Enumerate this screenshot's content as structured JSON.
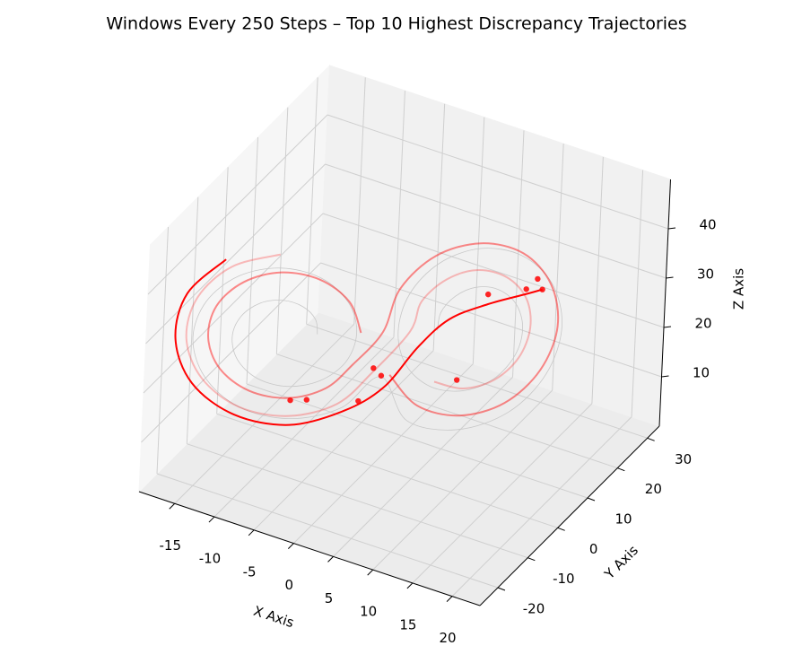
{
  "chart_data": {
    "type": "line3d",
    "title": "Windows Every 250 Steps – Top 10 Highest Discrepancy Trajectories",
    "xlabel": "X Axis",
    "ylabel": "Y Axis",
    "zlabel": "Z Axis",
    "xlim": [
      -19.5,
      23.5
    ],
    "ylim": [
      -26,
      34
    ],
    "zlim": [
      0,
      50
    ],
    "xticks": [
      -15,
      -10,
      -5,
      0,
      5,
      10,
      15,
      20
    ],
    "yticks": [
      -20,
      -10,
      0,
      10,
      20,
      30
    ],
    "zticks": [
      10,
      20,
      30,
      40
    ],
    "grid": true,
    "series": [
      {
        "color": "#c8c8c8",
        "alpha": 1,
        "width": 0.8,
        "x": [
          -5.5,
          -5.6,
          -6.7,
          -8.5,
          -10.6,
          -12.4,
          -13.3,
          -12.9,
          -11.2,
          -8.5,
          -5.5,
          -3.0,
          -1.9,
          -2.5,
          -4.9,
          -8.5,
          -12.4,
          -15.5,
          -16.9,
          -16.0,
          -13.0,
          -8.5,
          -3.7,
          0.1,
          3.7,
          8.5,
          13.0,
          16.0,
          16.9,
          15.5,
          12.4,
          8.5,
          4.9,
          2.5,
          1.9,
          3.0,
          5.5,
          8.5,
          11.2,
          12.9,
          13.3,
          12.4,
          10.6,
          8.5,
          6.7,
          5.6,
          5.5
        ],
        "y": [
          -5.5,
          -6.1,
          -7.6,
          -9.7,
          -11.7,
          -13.1,
          -13.3,
          -12.2,
          -9.8,
          -6.8,
          -3.9,
          -2.1,
          -1.9,
          -3.6,
          -6.8,
          -10.8,
          -14.4,
          -16.7,
          -16.9,
          -14.7,
          -10.7,
          -5.7,
          -1.2,
          1.6,
          1.2,
          5.7,
          10.7,
          14.7,
          16.9,
          16.7,
          14.4,
          10.8,
          6.8,
          3.6,
          1.9,
          2.1,
          3.9,
          6.8,
          9.8,
          12.2,
          13.3,
          13.1,
          11.7,
          9.7,
          7.6,
          6.1,
          5.5
        ],
        "z": [
          27,
          30.3,
          33.2,
          34.8,
          34.3,
          31.5,
          27,
          21.9,
          17.6,
          15.6,
          16.6,
          20.7,
          27,
          33.9,
          39.5,
          42,
          40.5,
          35.1,
          27,
          18.3,
          11.4,
          8.4,
          10.4,
          17.1,
          10.4,
          8.4,
          11.4,
          18.3,
          27,
          35.1,
          40.5,
          42,
          39.5,
          33.9,
          27,
          20.7,
          16.6,
          15.6,
          17.6,
          21.9,
          27,
          31.5,
          34.3,
          34.8,
          33.2,
          30.3,
          27
        ]
      },
      {
        "color": "#ff0000",
        "alpha": 0.25,
        "width": 2,
        "x": [
          -8.5,
          -13,
          -16.3,
          -17.5,
          -16.3,
          -13,
          -8.5,
          -4,
          -0.7,
          3,
          3.7,
          5.8,
          8.5,
          11.3,
          13.3,
          14,
          13.3,
          11.3,
          8.5,
          5.8
        ],
        "y": [
          -11.2,
          -15.3,
          -17.6,
          -17.5,
          -14.9,
          -10.7,
          -5.8,
          -1.7,
          0.6,
          3,
          4.6,
          7.2,
          10.2,
          12.7,
          14.1,
          14,
          12.4,
          9.8,
          6.9,
          4.3
        ],
        "z": [
          45,
          42.6,
          36,
          27,
          18,
          11.4,
          9,
          11.4,
          18,
          27,
          32.5,
          36.5,
          38,
          36.5,
          32.5,
          27,
          21.5,
          17.5,
          16,
          17.5
        ]
      },
      {
        "color": "#ff0000",
        "alpha": 0.45,
        "width": 2,
        "x": [
          -1.5,
          -2.4,
          -5,
          -8.5,
          -12,
          -14.6,
          -15.5,
          -14.6,
          -12,
          -8.5,
          -5,
          -2.4,
          0.5,
          1.6,
          4.5,
          8.5,
          12.5,
          15.4,
          16.5,
          15.4,
          12.5,
          8.5,
          4.5,
          1.6
        ],
        "y": [
          -1.5,
          -3.5,
          -6.8,
          -10.6,
          -13.8,
          -15.6,
          -15.5,
          -13.5,
          -10.2,
          -6.4,
          -3.2,
          -1.4,
          0.5,
          2.8,
          6.6,
          10.9,
          14.6,
          16.6,
          16.5,
          14.2,
          10.4,
          6.1,
          2.4,
          0.4
        ],
        "z": [
          27,
          34,
          39.1,
          41,
          39.1,
          34,
          27,
          20,
          14.9,
          13,
          14.9,
          20,
          27,
          35,
          40.9,
          43,
          40.9,
          35,
          27,
          19,
          13.1,
          11,
          13.1,
          19
        ]
      },
      {
        "color": "#ff0000",
        "alpha": 1,
        "width": 2,
        "x": [
          -13.5,
          -17.2,
          -18.5,
          -17.2,
          -13.5,
          -8.5,
          -3.5,
          0,
          3,
          6,
          10,
          14,
          16
        ],
        "y": [
          -16.1,
          -18.7,
          -18.5,
          -15.7,
          -10.9,
          -5.5,
          -0.9,
          3,
          6,
          8,
          10,
          12,
          12
        ],
        "z": [
          44.3,
          37,
          27,
          17,
          9.7,
          7,
          9.7,
          14,
          22,
          28,
          32,
          35,
          37
        ]
      }
    ],
    "points": {
      "color": "#ff0000",
      "alpha": 0.85,
      "x": [
        -8.5,
        -7,
        -1,
        0,
        -2,
        10,
        8,
        14,
        15,
        16
      ],
      "y": [
        -5.5,
        -4,
        2,
        2,
        0,
        10,
        6,
        12,
        13,
        12
      ],
      "z": [
        12,
        12,
        18,
        17,
        12,
        34,
        18,
        36,
        38,
        37
      ]
    }
  }
}
